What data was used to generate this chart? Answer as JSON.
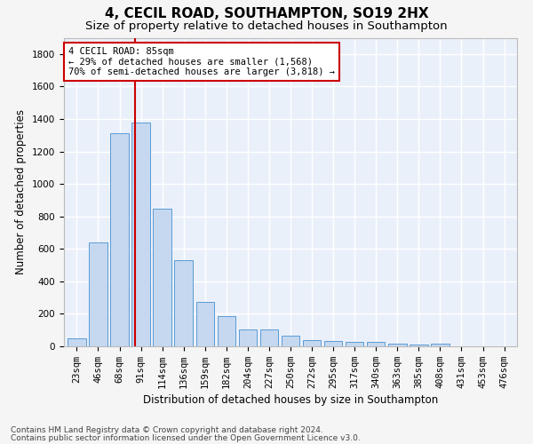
{
  "title": "4, CECIL ROAD, SOUTHAMPTON, SO19 2HX",
  "subtitle": "Size of property relative to detached houses in Southampton",
  "xlabel": "Distribution of detached houses by size in Southampton",
  "ylabel": "Number of detached properties",
  "categories": [
    "23sqm",
    "46sqm",
    "68sqm",
    "91sqm",
    "114sqm",
    "136sqm",
    "159sqm",
    "182sqm",
    "204sqm",
    "227sqm",
    "250sqm",
    "272sqm",
    "295sqm",
    "317sqm",
    "340sqm",
    "363sqm",
    "385sqm",
    "408sqm",
    "431sqm",
    "453sqm",
    "476sqm"
  ],
  "values": [
    50,
    640,
    1310,
    1380,
    850,
    530,
    275,
    185,
    105,
    105,
    65,
    40,
    35,
    30,
    25,
    15,
    10,
    15,
    0,
    0,
    0
  ],
  "bar_color": "#c5d8f0",
  "bar_edge_color": "#5b9bd5",
  "bar_width": 0.85,
  "ylim": [
    0,
    1900
  ],
  "yticks": [
    0,
    200,
    400,
    600,
    800,
    1000,
    1200,
    1400,
    1600,
    1800
  ],
  "vline_color": "#cc0000",
  "annotation_text": "4 CECIL ROAD: 85sqm\n← 29% of detached houses are smaller (1,568)\n70% of semi-detached houses are larger (3,818) →",
  "annotation_box_color": "#ffffff",
  "annotation_box_edge": "#cc0000",
  "footnote1": "Contains HM Land Registry data © Crown copyright and database right 2024.",
  "footnote2": "Contains public sector information licensed under the Open Government Licence v3.0.",
  "background_color": "#eaf0fa",
  "grid_color": "#ffffff",
  "fig_background": "#f5f5f5",
  "title_fontsize": 11,
  "subtitle_fontsize": 9.5,
  "axis_label_fontsize": 8.5,
  "tick_fontsize": 7.5,
  "annotation_fontsize": 7.5,
  "footnote_fontsize": 6.5
}
